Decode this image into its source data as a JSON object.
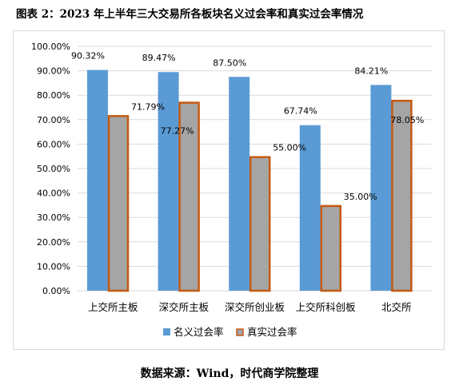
{
  "title": "图表 2：2023 年上半年三大交易所各板块名义过会率和真实过会率情况",
  "source": "数据来源：Wind，时代商学院整理",
  "colors": {
    "series1_fill": "#5b9bd5",
    "series2_fill": "#a5a5a5",
    "series2_stroke": "#c55a11",
    "grid": "#d9d9d9",
    "axis_text": "#000000"
  },
  "chart_data": {
    "type": "bar",
    "categories": [
      "上交所主板",
      "深交所主板",
      "深交所创业板",
      "上交所科创板",
      "北交所"
    ],
    "series": [
      {
        "name": "名义过会率",
        "values": [
          90.32,
          89.47,
          87.5,
          67.74,
          84.21
        ],
        "labels": [
          "90.32%",
          "89.47%",
          "87.50%",
          "67.74%",
          "84.21%"
        ]
      },
      {
        "name": "真实过会率",
        "values": [
          71.79,
          77.27,
          55.0,
          35.0,
          78.05
        ],
        "labels": [
          "71.79%",
          "77.27%",
          "55.00%",
          "35.00%",
          "78.05%"
        ]
      }
    ],
    "ylim": [
      0,
      100
    ],
    "yticks": [
      "0.00%",
      "10.00%",
      "20.00%",
      "30.00%",
      "40.00%",
      "50.00%",
      "60.00%",
      "70.00%",
      "80.00%",
      "90.00%",
      "100.00%"
    ],
    "grid": true,
    "legend": "bottom"
  }
}
